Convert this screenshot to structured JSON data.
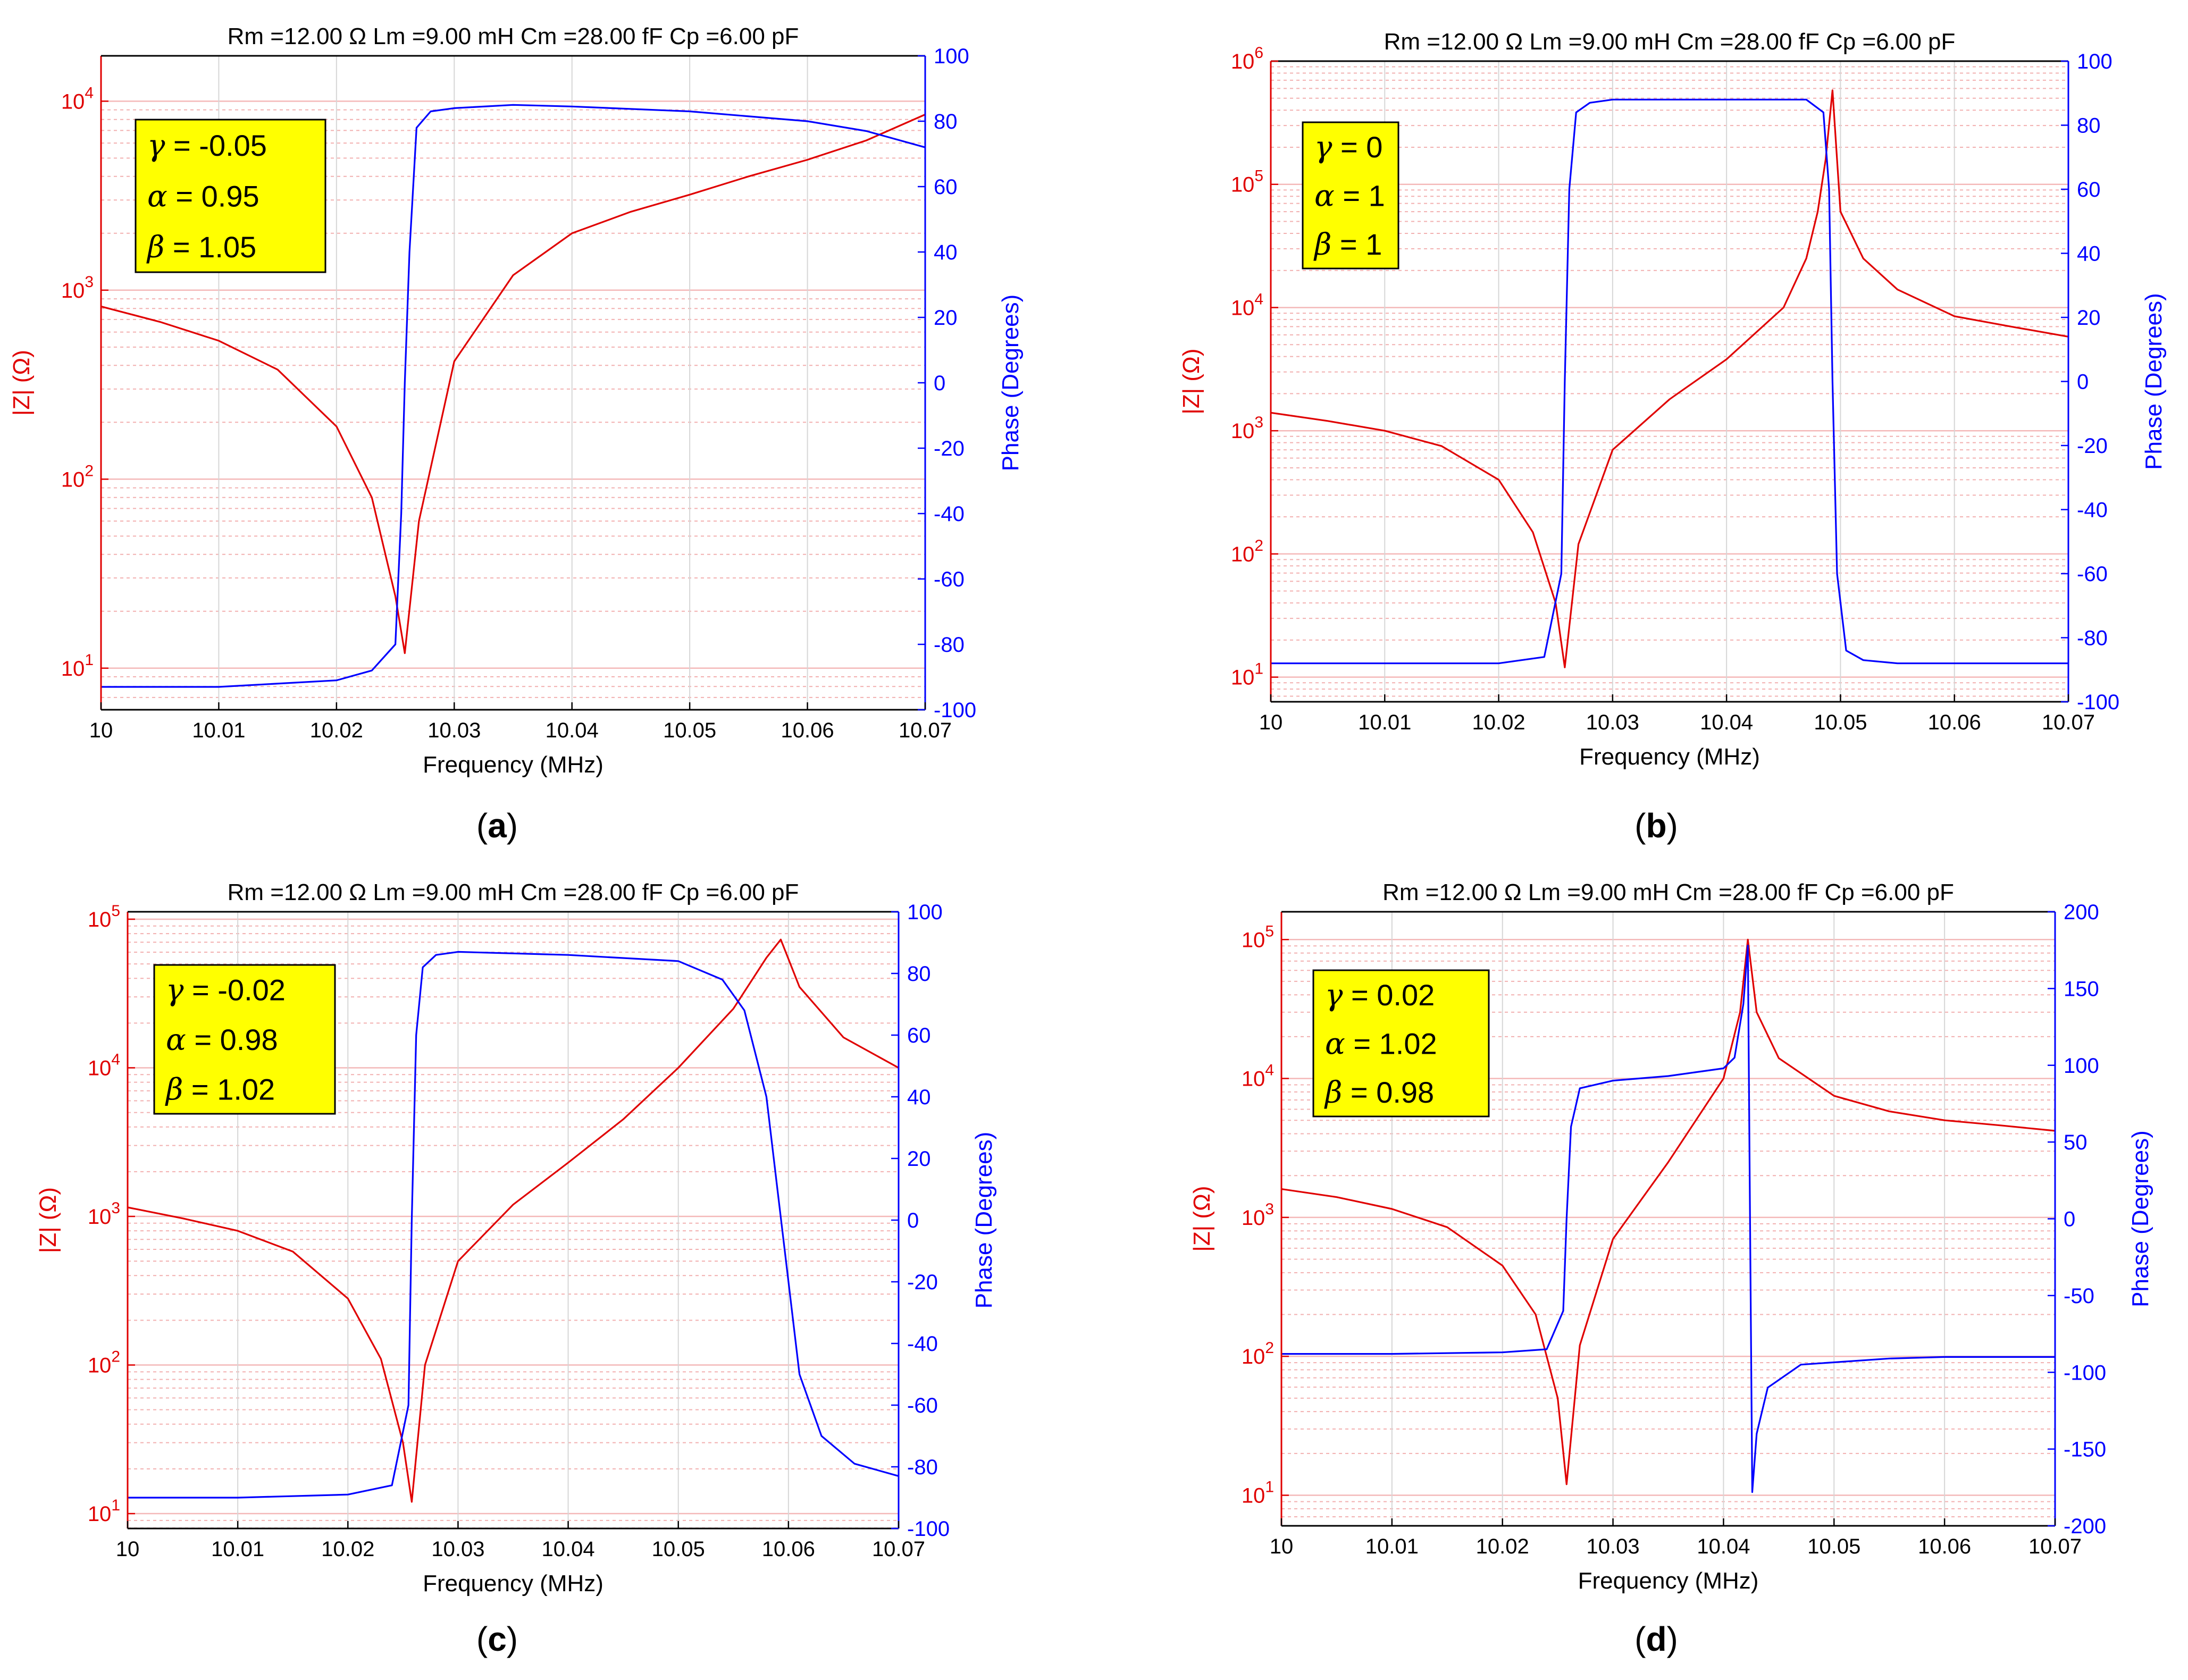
{
  "figure": {
    "header": "Rm =12.00 Ω    Lm =9.00 mH    Cm =28.00 fF    Cp =6.00 pF"
  },
  "chart_data": [
    {
      "type": "line",
      "caption": "(a)",
      "caption_letter": "a",
      "header": "Rm =12.00 Ω    Lm =9.00 mH    Cm =28.00 fF    Cp =6.00 pF",
      "xlabel": "Frequency (MHz)",
      "ylabel_left": "|Z| (Ω)",
      "ylabel_right": "Phase (Degrees)",
      "x_ticks": [
        "10",
        "10.01",
        "10.02",
        "10.03",
        "10.04",
        "10.05",
        "10.06",
        "10.07"
      ],
      "xlim": [
        10,
        10.07
      ],
      "ylim_left_log10": [
        0.78,
        4.24
      ],
      "y_ticks_left_exp": [
        1,
        2,
        3,
        4
      ],
      "ylim_right": [
        -100,
        100
      ],
      "y_ticks_right": [
        "100",
        "80",
        "60",
        "40",
        "20",
        "0",
        "-20",
        "-40",
        "-60",
        "-80",
        "-100"
      ],
      "annotation": [
        {
          "symbol": "γ",
          "text": " = -0.05"
        },
        {
          "symbol": "α",
          "text": " = 0.95"
        },
        {
          "symbol": "β",
          "text": " = 1.05"
        }
      ],
      "series": [
        {
          "name": "|Z|",
          "axis": "left",
          "color": "#e00000",
          "x": [
            10.0,
            10.005,
            10.01,
            10.015,
            10.02,
            10.023,
            10.025,
            10.0258,
            10.027,
            10.03,
            10.035,
            10.04,
            10.045,
            10.05,
            10.055,
            10.06,
            10.065,
            10.07
          ],
          "values": [
            820,
            680,
            540,
            380,
            190,
            80,
            24,
            12,
            60,
            420,
            1200,
            2000,
            2600,
            3200,
            4000,
            4900,
            6200,
            8500
          ]
        },
        {
          "name": "Phase",
          "axis": "right",
          "color": "#0000ff",
          "x": [
            10.0,
            10.01,
            10.02,
            10.023,
            10.025,
            10.0255,
            10.0258,
            10.0262,
            10.0268,
            10.028,
            10.03,
            10.035,
            10.04,
            10.05,
            10.06,
            10.065,
            10.07
          ],
          "values": [
            -93,
            -93,
            -91,
            -88,
            -80,
            -40,
            0,
            40,
            78,
            83,
            84,
            85,
            84.5,
            83,
            80,
            77,
            72
          ]
        }
      ]
    },
    {
      "type": "line",
      "caption": "(b)",
      "caption_letter": "b",
      "header": "Rm =12.00 Ω    Lm =9.00 mH    Cm =28.00 fF    Cp =6.00 pF",
      "xlabel": "Frequency (MHz)",
      "ylabel_left": "|Z| (Ω)",
      "ylabel_right": "Phase (Degrees)",
      "x_ticks": [
        "10",
        "10.01",
        "10.02",
        "10.03",
        "10.04",
        "10.05",
        "10.06",
        "10.07"
      ],
      "xlim": [
        10,
        10.07
      ],
      "ylim_left_log10": [
        0.8,
        6.0
      ],
      "y_ticks_left_exp": [
        1,
        2,
        3,
        4,
        5,
        6
      ],
      "ylim_right": [
        -100,
        100
      ],
      "y_ticks_right": [
        "100",
        "80",
        "60",
        "40",
        "20",
        "0",
        "-20",
        "-40",
        "-60",
        "-80",
        "-100"
      ],
      "annotation": [
        {
          "symbol": "γ",
          "text": " = 0"
        },
        {
          "symbol": "α",
          "text": " = 1"
        },
        {
          "symbol": "β",
          "text": " = 1"
        }
      ],
      "series": [
        {
          "name": "|Z|",
          "axis": "left",
          "color": "#e00000",
          "x": [
            10.0,
            10.005,
            10.01,
            10.015,
            10.02,
            10.023,
            10.025,
            10.0258,
            10.027,
            10.03,
            10.035,
            10.04,
            10.045,
            10.047,
            10.048,
            10.0487,
            10.0493,
            10.05,
            10.052,
            10.055,
            10.06,
            10.065,
            10.07
          ],
          "values": [
            1400,
            1200,
            1000,
            750,
            400,
            150,
            40,
            12,
            120,
            700,
            1800,
            3800,
            10000,
            25000,
            60000,
            160000,
            580000,
            60000,
            25000,
            14000,
            8500,
            7000,
            5800
          ]
        },
        {
          "name": "Phase",
          "axis": "right",
          "color": "#0000ff",
          "x": [
            10.0,
            10.01,
            10.02,
            10.024,
            10.0255,
            10.0258,
            10.0262,
            10.0268,
            10.028,
            10.03,
            10.04,
            10.047,
            10.0485,
            10.049,
            10.0493,
            10.0497,
            10.0505,
            10.052,
            10.055,
            10.06,
            10.07
          ],
          "values": [
            -88,
            -88,
            -88,
            -86,
            -60,
            0,
            60,
            84,
            87,
            88,
            88,
            88,
            84,
            60,
            0,
            -60,
            -84,
            -87,
            -88,
            -88,
            -88
          ]
        }
      ]
    },
    {
      "type": "line",
      "caption": "(c)",
      "caption_letter": "c",
      "header": "Rm =12.00 Ω    Lm =9.00 mH    Cm =28.00 fF    Cp =6.00 pF",
      "xlabel": "Frequency (MHz)",
      "ylabel_left": "|Z| (Ω)",
      "ylabel_right": "Phase (Degrees)",
      "x_ticks": [
        "10",
        "10.01",
        "10.02",
        "10.03",
        "10.04",
        "10.05",
        "10.06",
        "10.07"
      ],
      "xlim": [
        10,
        10.07
      ],
      "ylim_left_log10": [
        0.9,
        5.05
      ],
      "y_ticks_left_exp": [
        1,
        2,
        3,
        4,
        5
      ],
      "ylim_right": [
        -100,
        100
      ],
      "y_ticks_right": [
        "100",
        "80",
        "60",
        "40",
        "20",
        "0",
        "-20",
        "-40",
        "-60",
        "-80",
        "-100"
      ],
      "annotation": [
        {
          "symbol": "γ",
          "text": " = -0.02"
        },
        {
          "symbol": "α",
          "text": " = 0.98"
        },
        {
          "symbol": "β",
          "text": " = 1.02"
        }
      ],
      "series": [
        {
          "name": "|Z|",
          "axis": "left",
          "color": "#e00000",
          "x": [
            10.0,
            10.005,
            10.01,
            10.015,
            10.02,
            10.023,
            10.025,
            10.0258,
            10.027,
            10.03,
            10.035,
            10.04,
            10.045,
            10.05,
            10.055,
            10.058,
            10.0593,
            10.061,
            10.065,
            10.07
          ],
          "values": [
            1150,
            970,
            800,
            580,
            280,
            110,
            30,
            12,
            100,
            500,
            1200,
            2300,
            4500,
            10000,
            25000,
            55000,
            73000,
            35000,
            16000,
            10000
          ]
        },
        {
          "name": "Phase",
          "axis": "right",
          "color": "#0000ff",
          "x": [
            10.0,
            10.01,
            10.02,
            10.024,
            10.0255,
            10.0258,
            10.0262,
            10.0268,
            10.028,
            10.03,
            10.04,
            10.05,
            10.054,
            10.056,
            10.058,
            10.059,
            10.06,
            10.061,
            10.063,
            10.066,
            10.07
          ],
          "values": [
            -90,
            -90,
            -89,
            -86,
            -60,
            0,
            60,
            82,
            86,
            87,
            86,
            84,
            78,
            68,
            40,
            10,
            -20,
            -50,
            -70,
            -79,
            -83
          ]
        }
      ]
    },
    {
      "type": "line",
      "caption": "(d)",
      "caption_letter": "d",
      "header": "Rm =12.00 Ω    Lm =9.00 mH    Cm =28.00 fF    Cp =6.00 pF",
      "xlabel": "Frequency (MHz)",
      "ylabel_left": "|Z| (Ω)",
      "ylabel_right": "Phase (Degrees)",
      "x_ticks": [
        "10",
        "10.01",
        "10.02",
        "10.03",
        "10.04",
        "10.05",
        "10.06",
        "10.07"
      ],
      "xlim": [
        10,
        10.07
      ],
      "ylim_left_log10": [
        0.78,
        5.2
      ],
      "y_ticks_left_exp": [
        1,
        2,
        3,
        4,
        5
      ],
      "ylim_right": [
        -200,
        200
      ],
      "y_ticks_right": [
        "200",
        "150",
        "100",
        "50",
        "0",
        "-50",
        "-100",
        "-150",
        "-200"
      ],
      "annotation": [
        {
          "symbol": "γ",
          "text": " = 0.02"
        },
        {
          "symbol": "α",
          "text": " = 1.02"
        },
        {
          "symbol": "β",
          "text": " = 0.98"
        }
      ],
      "series": [
        {
          "name": "|Z|",
          "axis": "left",
          "color": "#e00000",
          "x": [
            10.0,
            10.005,
            10.01,
            10.015,
            10.02,
            10.023,
            10.025,
            10.0258,
            10.027,
            10.03,
            10.035,
            10.04,
            10.0415,
            10.0422,
            10.043,
            10.045,
            10.05,
            10.055,
            10.06,
            10.065,
            10.07
          ],
          "values": [
            1600,
            1400,
            1150,
            850,
            450,
            200,
            50,
            12,
            120,
            700,
            2500,
            10000,
            30000,
            100000,
            30000,
            14000,
            7500,
            5800,
            5000,
            4600,
            4200
          ]
        },
        {
          "name": "Phase",
          "axis": "right",
          "color": "#0000ff",
          "x": [
            10.0,
            10.01,
            10.02,
            10.024,
            10.0255,
            10.0258,
            10.0262,
            10.027,
            10.03,
            10.035,
            10.04,
            10.041,
            10.0418,
            10.0422,
            10.0424,
            10.0426,
            10.043,
            10.044,
            10.047,
            10.055,
            10.06,
            10.07
          ],
          "values": [
            -88,
            -88,
            -87,
            -85,
            -60,
            0,
            60,
            85,
            90,
            93,
            98,
            105,
            140,
            178,
            0,
            -178,
            -140,
            -110,
            -95,
            -91,
            -90,
            -90
          ]
        }
      ]
    }
  ]
}
